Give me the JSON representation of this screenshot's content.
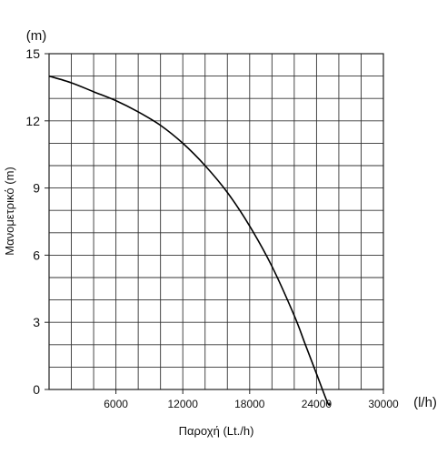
{
  "chart_data": {
    "type": "line",
    "title": "",
    "xlabel": "Παροχή (Lt./h)",
    "ylabel": "Μανομετρικό (m)",
    "x_unit_label": "(l/h)",
    "y_unit_label": "(m)",
    "xlim": [
      0,
      30000
    ],
    "ylim": [
      0,
      15
    ],
    "x_ticks": [
      6000,
      12000,
      18000,
      24000,
      30000
    ],
    "y_ticks": [
      0,
      3,
      6,
      9,
      12,
      15
    ],
    "x_tick_labels": [
      "6000",
      "12000",
      "18000",
      "24000",
      "30000"
    ],
    "y_tick_labels": [
      "0",
      "3",
      "6",
      "9",
      "12",
      "15"
    ],
    "x_minor_step": 2000,
    "y_minor_step": 1,
    "grid": true,
    "line_color": "#000000",
    "series": [
      {
        "x": [
          0,
          2000,
          4000,
          6000,
          8000,
          10000,
          12000,
          14000,
          16000,
          18000,
          20000,
          22000,
          23000,
          24000,
          25000,
          25200
        ],
        "y": [
          14.0,
          13.7,
          13.3,
          12.9,
          12.4,
          11.8,
          11.0,
          10.0,
          8.8,
          7.3,
          5.5,
          3.3,
          2.0,
          0.7,
          -0.6,
          -0.6
        ]
      }
    ]
  }
}
